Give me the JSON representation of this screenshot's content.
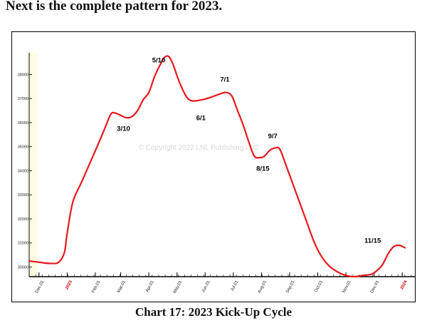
{
  "intro_text": "Next is the complete pattern for 2023.",
  "caption": "Chart 17: 2023 Kick-Up Cycle",
  "colors": {
    "line": "#e8181e",
    "plot_bg": "#fdfde4",
    "red_tick": "#cc0000"
  },
  "chart_data": {
    "type": "line",
    "title": "",
    "xlabel": "",
    "ylabel": "",
    "watermark": "© Copyright 2022 LNL Publishing LLC",
    "ylim": [
      29600,
      38900
    ],
    "y_ticks": [
      30000,
      31000,
      32000,
      33000,
      34000,
      35000,
      36000,
      37000,
      38000
    ],
    "x_ticks": [
      {
        "label": "Dec.01",
        "x": 0.0,
        "red": false
      },
      {
        "label": "2023",
        "x": 1.0,
        "red": true
      },
      {
        "label": "Feb.01",
        "x": 2.0,
        "red": false
      },
      {
        "label": "Mar.01",
        "x": 2.9,
        "red": false
      },
      {
        "label": "Apr.01",
        "x": 3.9,
        "red": false
      },
      {
        "label": "May.01",
        "x": 4.9,
        "red": false
      },
      {
        "label": "Jun.01",
        "x": 5.9,
        "red": false
      },
      {
        "label": "Jul.01",
        "x": 6.9,
        "red": false
      },
      {
        "label": "Aug.01",
        "x": 7.9,
        "red": false
      },
      {
        "label": "Sep.01",
        "x": 8.9,
        "red": false
      },
      {
        "label": "Oct.01",
        "x": 9.9,
        "red": false
      },
      {
        "label": "Nov.01",
        "x": 10.9,
        "red": false
      },
      {
        "label": "Dec.01",
        "x": 11.9,
        "red": false
      },
      {
        "label": "2024",
        "x": 12.9,
        "red": true
      }
    ],
    "xlim": [
      -0.35,
      13.35
    ],
    "series": [
      {
        "points": [
          [
            -0.35,
            30250
          ],
          [
            0.0,
            30200
          ],
          [
            0.4,
            30150
          ],
          [
            0.7,
            30200
          ],
          [
            0.9,
            30600
          ],
          [
            1.0,
            31400
          ],
          [
            1.2,
            32700
          ],
          [
            1.5,
            33500
          ],
          [
            1.8,
            34300
          ],
          [
            2.1,
            35100
          ],
          [
            2.35,
            35800
          ],
          [
            2.55,
            36350
          ],
          [
            2.7,
            36400
          ],
          [
            2.9,
            36300
          ],
          [
            3.1,
            36200
          ],
          [
            3.3,
            36250
          ],
          [
            3.5,
            36500
          ],
          [
            3.7,
            36950
          ],
          [
            3.9,
            37250
          ],
          [
            4.1,
            37900
          ],
          [
            4.3,
            38400
          ],
          [
            4.45,
            38700
          ],
          [
            4.6,
            38750
          ],
          [
            4.75,
            38450
          ],
          [
            4.9,
            37950
          ],
          [
            5.05,
            37500
          ],
          [
            5.25,
            37050
          ],
          [
            5.45,
            36900
          ],
          [
            5.8,
            36950
          ],
          [
            6.1,
            37050
          ],
          [
            6.45,
            37200
          ],
          [
            6.65,
            37250
          ],
          [
            6.85,
            37100
          ],
          [
            7.05,
            36500
          ],
          [
            7.25,
            35900
          ],
          [
            7.45,
            35200
          ],
          [
            7.65,
            34600
          ],
          [
            7.85,
            34550
          ],
          [
            8.0,
            34600
          ],
          [
            8.2,
            34850
          ],
          [
            8.4,
            34950
          ],
          [
            8.55,
            34900
          ],
          [
            8.75,
            34300
          ],
          [
            9.0,
            33500
          ],
          [
            9.25,
            32700
          ],
          [
            9.5,
            31900
          ],
          [
            9.75,
            31100
          ],
          [
            10.0,
            30500
          ],
          [
            10.3,
            30050
          ],
          [
            10.6,
            29800
          ],
          [
            10.9,
            29650
          ],
          [
            11.2,
            29600
          ],
          [
            11.5,
            29650
          ],
          [
            11.8,
            29700
          ],
          [
            12.0,
            29850
          ],
          [
            12.2,
            30100
          ],
          [
            12.4,
            30550
          ],
          [
            12.6,
            30850
          ],
          [
            12.8,
            30900
          ],
          [
            13.0,
            30800
          ]
        ]
      }
    ],
    "annotations": [
      {
        "text": "5/10",
        "x": 4.25,
        "y": 38500
      },
      {
        "text": "7/1",
        "x": 6.6,
        "y": 37700
      },
      {
        "text": "3/10",
        "x": 3.0,
        "y": 35650
      },
      {
        "text": "6/1",
        "x": 5.75,
        "y": 36100
      },
      {
        "text": "9/7",
        "x": 8.3,
        "y": 35350
      },
      {
        "text": "8/15",
        "x": 7.95,
        "y": 34000
      },
      {
        "text": "11/15",
        "x": 11.85,
        "y": 31000
      }
    ]
  }
}
